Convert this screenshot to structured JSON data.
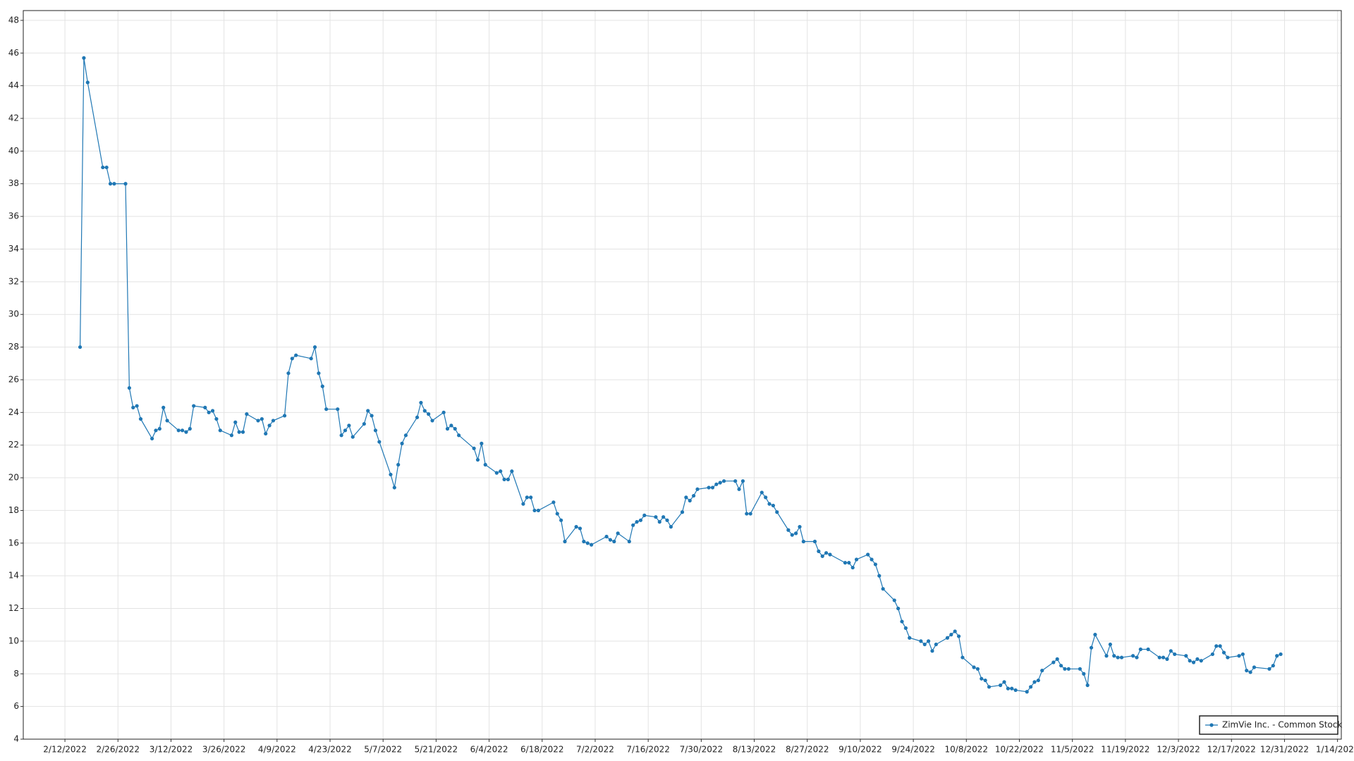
{
  "chart_data": {
    "type": "line",
    "x": [
      "2/16/2022",
      "2/17/2022",
      "2/18/2022",
      "2/22/2022",
      "2/23/2022",
      "2/24/2022",
      "2/25/2022",
      "2/28/2022",
      "3/1/2022",
      "3/2/2022",
      "3/3/2022",
      "3/4/2022",
      "3/7/2022",
      "3/8/2022",
      "3/9/2022",
      "3/10/2022",
      "3/11/2022",
      "3/14/2022",
      "3/15/2022",
      "3/16/2022",
      "3/17/2022",
      "3/18/2022",
      "3/21/2022",
      "3/22/2022",
      "3/23/2022",
      "3/24/2022",
      "3/25/2022",
      "3/28/2022",
      "3/29/2022",
      "3/30/2022",
      "3/31/2022",
      "4/1/2022",
      "4/4/2022",
      "4/5/2022",
      "4/6/2022",
      "4/7/2022",
      "4/8/2022",
      "4/11/2022",
      "4/12/2022",
      "4/13/2022",
      "4/14/2022",
      "4/18/2022",
      "4/19/2022",
      "4/20/2022",
      "4/21/2022",
      "4/22/2022",
      "4/25/2022",
      "4/26/2022",
      "4/27/2022",
      "4/28/2022",
      "4/29/2022",
      "5/2/2022",
      "5/3/2022",
      "5/4/2022",
      "5/5/2022",
      "5/6/2022",
      "5/9/2022",
      "5/10/2022",
      "5/11/2022",
      "5/12/2022",
      "5/13/2022",
      "5/16/2022",
      "5/17/2022",
      "5/18/2022",
      "5/19/2022",
      "5/20/2022",
      "5/23/2022",
      "5/24/2022",
      "5/25/2022",
      "5/26/2022",
      "5/27/2022",
      "5/31/2022",
      "6/1/2022",
      "6/2/2022",
      "6/3/2022",
      "6/6/2022",
      "6/7/2022",
      "6/8/2022",
      "6/9/2022",
      "6/10/2022",
      "6/13/2022",
      "6/14/2022",
      "6/15/2022",
      "6/16/2022",
      "6/17/2022",
      "6/21/2022",
      "6/22/2022",
      "6/23/2022",
      "6/24/2022",
      "6/27/2022",
      "6/28/2022",
      "6/29/2022",
      "6/30/2022",
      "7/1/2022",
      "7/5/2022",
      "7/6/2022",
      "7/7/2022",
      "7/8/2022",
      "7/11/2022",
      "7/12/2022",
      "7/13/2022",
      "7/14/2022",
      "7/15/2022",
      "7/18/2022",
      "7/19/2022",
      "7/20/2022",
      "7/21/2022",
      "7/22/2022",
      "7/25/2022",
      "7/26/2022",
      "7/27/2022",
      "7/28/2022",
      "7/29/2022",
      "8/1/2022",
      "8/2/2022",
      "8/3/2022",
      "8/4/2022",
      "8/5/2022",
      "8/8/2022",
      "8/9/2022",
      "8/10/2022",
      "8/11/2022",
      "8/12/2022",
      "8/15/2022",
      "8/16/2022",
      "8/17/2022",
      "8/18/2022",
      "8/19/2022",
      "8/22/2022",
      "8/23/2022",
      "8/24/2022",
      "8/25/2022",
      "8/26/2022",
      "8/29/2022",
      "8/30/2022",
      "8/31/2022",
      "9/1/2022",
      "9/2/2022",
      "9/6/2022",
      "9/7/2022",
      "9/8/2022",
      "9/9/2022",
      "9/12/2022",
      "9/13/2022",
      "9/14/2022",
      "9/15/2022",
      "9/16/2022",
      "9/19/2022",
      "9/20/2022",
      "9/21/2022",
      "9/22/2022",
      "9/23/2022",
      "9/26/2022",
      "9/27/2022",
      "9/28/2022",
      "9/29/2022",
      "9/30/2022",
      "10/3/2022",
      "10/4/2022",
      "10/5/2022",
      "10/6/2022",
      "10/7/2022",
      "10/10/2022",
      "10/11/2022",
      "10/12/2022",
      "10/13/2022",
      "10/14/2022",
      "10/17/2022",
      "10/18/2022",
      "10/19/2022",
      "10/20/2022",
      "10/21/2022",
      "10/24/2022",
      "10/25/2022",
      "10/26/2022",
      "10/27/2022",
      "10/28/2022",
      "10/31/2022",
      "11/1/2022",
      "11/2/2022",
      "11/3/2022",
      "11/4/2022",
      "11/7/2022",
      "11/8/2022",
      "11/9/2022",
      "11/10/2022",
      "11/11/2022",
      "11/14/2022",
      "11/15/2022",
      "11/16/2022",
      "11/17/2022",
      "11/18/2022",
      "11/21/2022",
      "11/22/2022",
      "11/23/2022",
      "11/25/2022",
      "11/28/2022",
      "11/29/2022",
      "11/30/2022",
      "12/1/2022",
      "12/2/2022",
      "12/5/2022",
      "12/6/2022",
      "12/7/2022",
      "12/8/2022",
      "12/9/2022",
      "12/12/2022",
      "12/13/2022",
      "12/14/2022",
      "12/15/2022",
      "12/16/2022",
      "12/19/2022",
      "12/20/2022",
      "12/21/2022",
      "12/22/2022",
      "12/23/2022",
      "12/27/2022",
      "12/28/2022",
      "12/29/2022",
      "12/30/2022"
    ],
    "series": [
      {
        "name": "ZimVie Inc. - Common Stock",
        "color": "#1f77b4",
        "values": [
          28.0,
          45.7,
          44.2,
          39.0,
          39.0,
          38.0,
          38.0,
          38.0,
          25.5,
          24.3,
          24.4,
          23.6,
          22.4,
          22.9,
          23.0,
          24.3,
          23.5,
          22.9,
          22.9,
          22.8,
          23.0,
          24.4,
          24.3,
          24.0,
          24.1,
          23.6,
          22.9,
          22.6,
          23.4,
          22.8,
          22.8,
          23.9,
          23.5,
          23.6,
          22.7,
          23.2,
          23.5,
          23.8,
          26.4,
          27.3,
          27.5,
          27.3,
          28.0,
          26.4,
          25.6,
          24.2,
          24.2,
          22.6,
          22.9,
          23.2,
          22.5,
          23.3,
          24.1,
          23.8,
          22.9,
          22.2,
          20.2,
          19.4,
          20.8,
          22.1,
          22.6,
          23.7,
          24.6,
          24.1,
          23.9,
          23.5,
          24.0,
          23.0,
          23.2,
          23.0,
          22.6,
          21.8,
          21.1,
          22.1,
          20.8,
          20.3,
          20.4,
          19.9,
          19.9,
          20.4,
          18.4,
          18.8,
          18.8,
          18.0,
          18.0,
          18.5,
          17.8,
          17.4,
          16.1,
          17.0,
          16.9,
          16.1,
          16.0,
          15.9,
          16.4,
          16.2,
          16.1,
          16.6,
          16.1,
          17.1,
          17.3,
          17.4,
          17.7,
          17.6,
          17.3,
          17.6,
          17.4,
          17.0,
          17.9,
          18.8,
          18.6,
          18.9,
          19.3,
          19.4,
          19.4,
          19.6,
          19.7,
          19.8,
          19.8,
          19.3,
          19.8,
          17.8,
          17.8,
          19.1,
          18.8,
          18.4,
          18.3,
          17.9,
          16.8,
          16.5,
          16.6,
          17.0,
          16.1,
          16.1,
          15.5,
          15.2,
          15.4,
          15.3,
          14.8,
          14.8,
          14.5,
          15.0,
          15.3,
          15.0,
          14.7,
          14.0,
          13.2,
          12.5,
          12.0,
          11.2,
          10.8,
          10.2,
          10.0,
          9.8,
          10.0,
          9.4,
          9.8,
          10.2,
          10.4,
          10.6,
          10.3,
          9.0,
          8.4,
          8.3,
          7.7,
          7.6,
          7.2,
          7.3,
          7.5,
          7.1,
          7.1,
          7.0,
          6.9,
          7.2,
          7.5,
          7.6,
          8.2,
          8.7,
          8.9,
          8.5,
          8.3,
          8.3,
          8.3,
          8.0,
          7.3,
          9.6,
          10.4,
          9.1,
          9.8,
          9.1,
          9.0,
          9.0,
          9.1,
          9.0,
          9.5,
          9.5,
          9.0,
          9.0,
          8.9,
          9.4,
          9.2,
          9.1,
          8.8,
          8.7,
          8.9,
          8.8,
          9.2,
          9.7,
          9.7,
          9.3,
          9.0,
          9.1,
          9.2,
          8.2,
          8.1,
          8.4,
          8.3,
          8.5,
          9.1,
          9.2
        ]
      }
    ],
    "xlim": [
      "2/1/2022",
      "1/15/2023"
    ],
    "xticks": [
      "2/12/2022",
      "2/26/2022",
      "3/12/2022",
      "3/26/2022",
      "4/9/2022",
      "4/23/2022",
      "5/7/2022",
      "5/21/2022",
      "6/4/2022",
      "6/18/2022",
      "7/2/2022",
      "7/16/2022",
      "7/30/2022",
      "8/13/2022",
      "8/27/2022",
      "9/10/2022",
      "9/24/2022",
      "10/8/2022",
      "10/22/2022",
      "11/5/2022",
      "11/19/2022",
      "12/3/2022",
      "12/17/2022",
      "12/31/2022",
      "1/14/2023"
    ],
    "ylim": [
      4,
      48.6
    ],
    "yticks": [
      4,
      6,
      8,
      10,
      12,
      14,
      16,
      18,
      20,
      22,
      24,
      26,
      28,
      30,
      32,
      34,
      36,
      38,
      40,
      42,
      44,
      46,
      48
    ],
    "grid": true,
    "legend": "bottom-right"
  }
}
